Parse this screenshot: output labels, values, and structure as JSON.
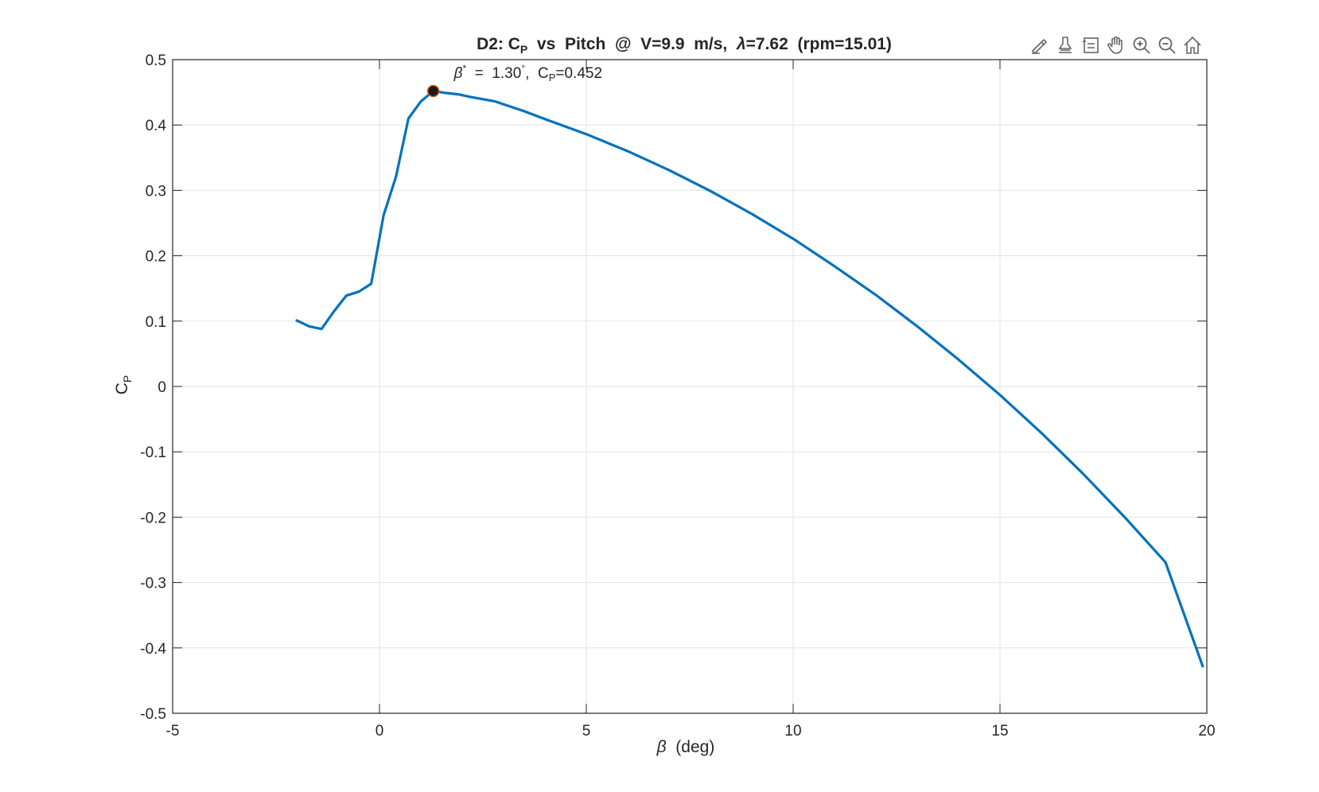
{
  "toolbar": {
    "icons": [
      "brush-edit-icon",
      "data-tips-icon",
      "legend-icon",
      "pan-hand-icon",
      "zoom-in-icon",
      "zoom-out-icon",
      "home-icon"
    ]
  },
  "colors": {
    "line": "#0072bd",
    "marker_fill": "#1a1a1a",
    "marker_edge": "#d95319",
    "grid": "#e3e3e3",
    "axes": "#262626"
  },
  "chart_data": {
    "type": "line",
    "title": "D2:  C_P  vs  Pitch  @  V=9.9  m/s,  λ=7.62  (rpm=15.01)",
    "title_parts": {
      "t1": "D2:  C",
      "t1_sub": "P",
      "t2": "  vs  Pitch  @  V=9.9  m/s,  ",
      "t2_sym": "λ",
      "t3": "=7.62  (rpm=15.01)"
    },
    "xlabel": "β  (deg)",
    "xlabel_parts": {
      "sym": "β",
      "rest": "  (deg)"
    },
    "ylabel": "C_P",
    "ylabel_parts": {
      "main": "C",
      "sub": "P"
    },
    "xlim": [
      -5,
      20
    ],
    "ylim": [
      -0.5,
      0.5
    ],
    "xticks": [
      -5,
      0,
      5,
      10,
      15,
      20
    ],
    "xtick_labels": [
      "-5",
      "0",
      "5",
      "10",
      "15",
      "20"
    ],
    "yticks": [
      -0.5,
      -0.4,
      -0.3,
      -0.2,
      -0.1,
      0,
      0.1,
      0.2,
      0.3,
      0.4,
      0.5
    ],
    "ytick_labels": [
      "-0.5",
      "-0.4",
      "-0.3",
      "-0.2",
      "-0.1",
      "0",
      "0.1",
      "0.2",
      "0.3",
      "0.4",
      "0.5"
    ],
    "grid": true,
    "series": [
      {
        "x": [
          -2.0,
          -1.7,
          -1.4,
          -1.1,
          -0.8,
          -0.5,
          -0.2,
          0.1,
          0.4,
          0.7,
          1.0,
          1.3,
          1.6,
          1.9,
          2.2,
          2.8,
          3.5,
          4.0,
          5.0,
          6.0,
          7.0,
          8.0,
          9.0,
          10.0,
          11.0,
          12.0,
          13.0,
          14.0,
          15.0,
          16.0,
          17.0,
          18.0,
          19.0,
          19.9
        ],
        "y": [
          0.101,
          0.092,
          0.088,
          0.115,
          0.139,
          0.145,
          0.157,
          0.262,
          0.321,
          0.41,
          0.436,
          0.452,
          0.449,
          0.447,
          0.443,
          0.436,
          0.421,
          0.409,
          0.386,
          0.36,
          0.331,
          0.299,
          0.264,
          0.226,
          0.184,
          0.14,
          0.092,
          0.041,
          -0.013,
          -0.071,
          -0.133,
          -0.199,
          -0.269,
          -0.428
        ]
      }
    ],
    "marker": {
      "x": 1.3,
      "y": 0.452
    },
    "annotation": {
      "text": "β*  =  1.30°,  C_P=0.452",
      "parts": {
        "sym": "β",
        "star": "*",
        "val": "  =  1.30",
        "deg": "°",
        "c": ",  C",
        "c_sub": "P",
        "rest": "=0.452"
      },
      "anchor": {
        "x": 1.8,
        "y": 0.472
      }
    }
  }
}
